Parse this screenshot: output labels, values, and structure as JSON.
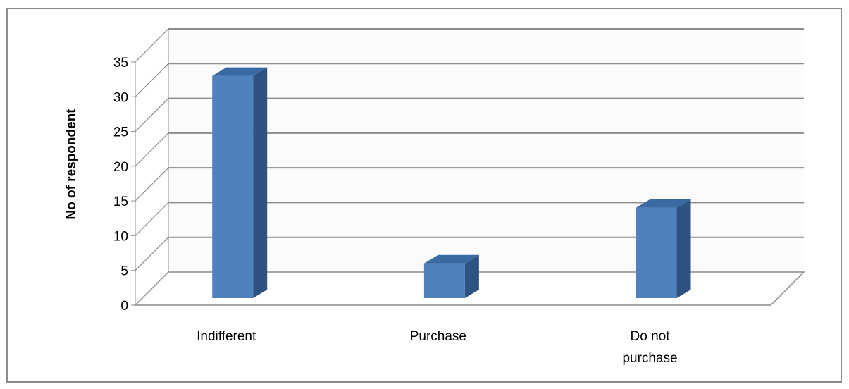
{
  "chart_data": {
    "type": "bar",
    "title": "",
    "xlabel": "",
    "ylabel": "No of respondent",
    "categories": [
      "Indifferent",
      "Purchase",
      "Do not purchase"
    ],
    "category_lines": [
      [
        "Indifferent"
      ],
      [
        "Purchase"
      ],
      [
        "Do not",
        "purchase"
      ]
    ],
    "values": [
      32,
      5,
      13
    ],
    "ylim": [
      0,
      35
    ],
    "yticks": [
      0,
      5,
      10,
      15,
      20,
      25,
      30,
      35
    ],
    "grid": true,
    "legend": "none",
    "style": "3d-column",
    "colors": {
      "bar_front": "#4f81bd",
      "bar_side": "#2f5380",
      "bar_top": "#3a6aa3",
      "gridline": "#8c8c8c",
      "frame": "#8c8c8c",
      "text": "#000000"
    }
  }
}
